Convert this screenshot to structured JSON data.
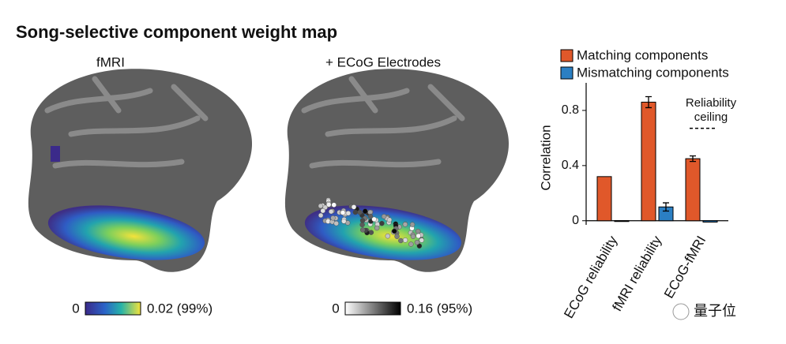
{
  "title": "Song-selective component weight map",
  "panels": [
    {
      "label": "fMRI",
      "colorbar": {
        "min_label": "0",
        "max_label": "0.02 (99%)"
      }
    },
    {
      "label": "+ ECoG Electrodes",
      "colorbar": {
        "min_label": "0",
        "max_label": "0.16 (95%)"
      }
    }
  ],
  "watermark": "量子位",
  "chart_data": {
    "type": "bar",
    "y_label": "Correlation",
    "categories": [
      "ECoG reliability",
      "fMRI reliability",
      "ECoG-fMRI"
    ],
    "series": [
      {
        "name": "Matching components",
        "color": "#e0582a",
        "values": [
          0.32,
          0.86,
          0.45
        ],
        "errors": [
          null,
          0.04,
          0.02
        ]
      },
      {
        "name": "Mismatching components",
        "color": "#2b7fc3",
        "values": [
          -0.005,
          0.1,
          -0.01
        ],
        "errors": [
          null,
          0.03,
          null
        ]
      }
    ],
    "ceiling": {
      "label": "Reliability ceiling",
      "value": 0.67
    },
    "ylim": [
      -0.03,
      1.0
    ],
    "yticks": [
      0,
      0.4,
      0.8
    ],
    "grid": false
  }
}
